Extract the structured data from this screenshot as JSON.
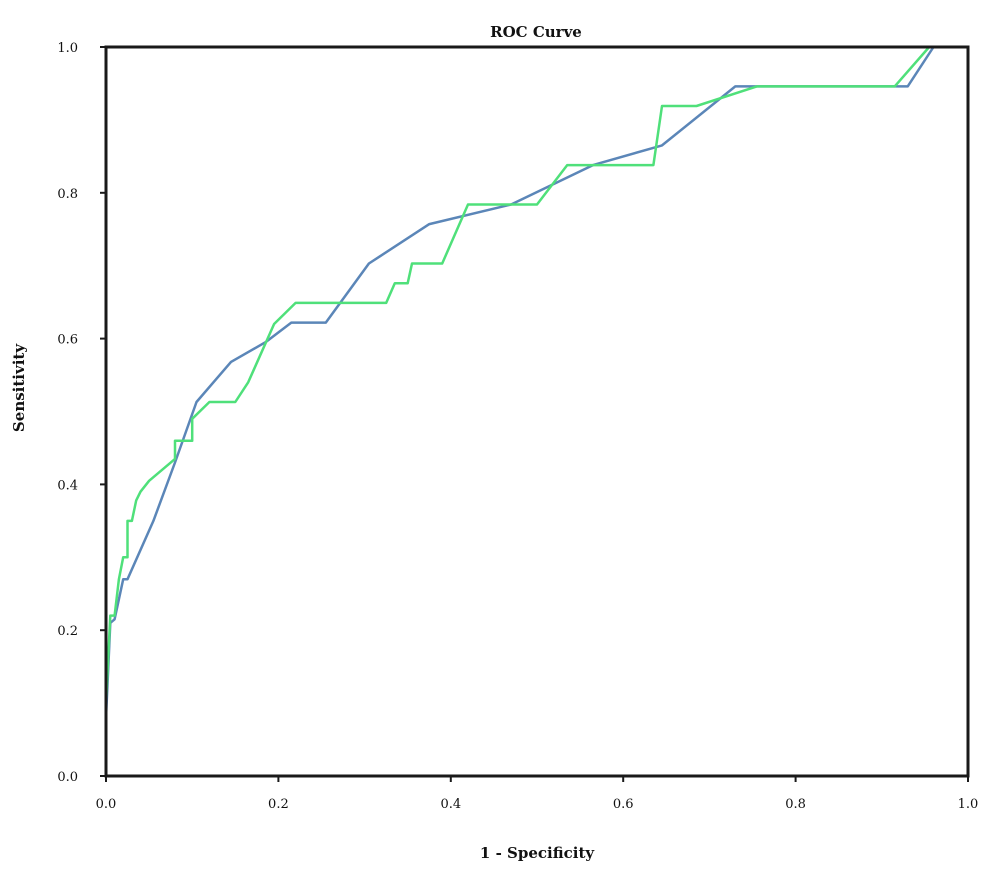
{
  "chart_data": {
    "type": "line",
    "title": "ROC Curve",
    "xlabel": "1 - Specificity",
    "ylabel": "Sensitivity",
    "xlim": [
      0,
      1
    ],
    "ylim": [
      0,
      1
    ],
    "xticks": [
      "0.0",
      "0.2",
      "0.4",
      "0.6",
      "0.8",
      "1.0"
    ],
    "yticks": [
      "0.0",
      "0.2",
      "0.4",
      "0.6",
      "0.8",
      "1.0"
    ],
    "grid": false,
    "legend": "none",
    "series": [
      {
        "color": "#5b86b8",
        "x": [
          0.0,
          0.005,
          0.01,
          0.02,
          0.025,
          0.055,
          0.08,
          0.105,
          0.145,
          0.185,
          0.215,
          0.255,
          0.305,
          0.375,
          0.47,
          0.565,
          0.645,
          0.73,
          0.755,
          0.92,
          0.93,
          0.96,
          1.0
        ],
        "y": [
          0.08,
          0.21,
          0.215,
          0.27,
          0.27,
          0.35,
          0.43,
          0.513,
          0.568,
          0.595,
          0.622,
          0.622,
          0.703,
          0.757,
          0.784,
          0.838,
          0.865,
          0.946,
          0.946,
          0.946,
          0.946,
          1.0,
          1.0
        ]
      },
      {
        "color": "#4fe07a",
        "x": [
          0.0,
          0.005,
          0.01,
          0.015,
          0.02,
          0.025,
          0.025,
          0.03,
          0.035,
          0.04,
          0.05,
          0.08,
          0.08,
          0.1,
          0.1,
          0.12,
          0.15,
          0.165,
          0.195,
          0.22,
          0.325,
          0.335,
          0.35,
          0.355,
          0.39,
          0.42,
          0.5,
          0.535,
          0.635,
          0.645,
          0.685,
          0.755,
          0.915,
          0.955,
          1.0
        ],
        "y": [
          0.1,
          0.22,
          0.22,
          0.27,
          0.3,
          0.3,
          0.35,
          0.35,
          0.378,
          0.39,
          0.405,
          0.435,
          0.46,
          0.46,
          0.49,
          0.513,
          0.513,
          0.54,
          0.62,
          0.649,
          0.649,
          0.676,
          0.676,
          0.703,
          0.703,
          0.784,
          0.784,
          0.838,
          0.838,
          0.919,
          0.919,
          0.946,
          0.946,
          1.0,
          1.0
        ]
      }
    ]
  }
}
